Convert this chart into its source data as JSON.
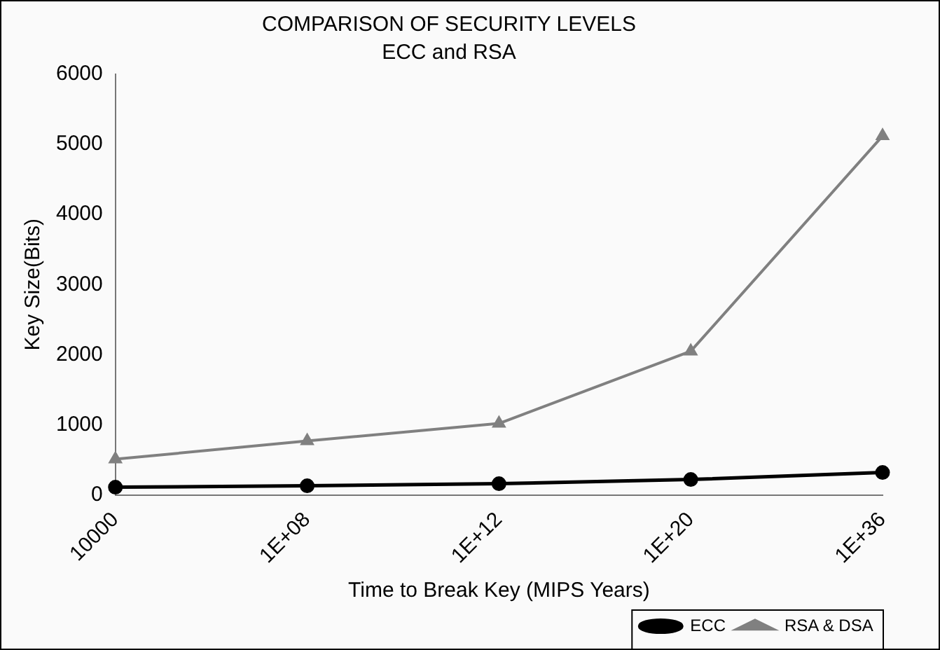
{
  "chart_data": {
    "type": "line",
    "title": "COMPARISON OF SECURITY LEVELS",
    "subtitle": "ECC and RSA",
    "xlabel": "Time to Break Key (MIPS Years)",
    "ylabel": "Key Size(Bits)",
    "categories": [
      "10000",
      "1E+08",
      "1E+12",
      "1E+20",
      "1E+36"
    ],
    "series": [
      {
        "name": "ECC",
        "color": "#000000",
        "marker": "circle",
        "values": [
          110,
          130,
          160,
          220,
          320
        ]
      },
      {
        "name": "RSA & DSA",
        "color": "#808080",
        "marker": "triangle",
        "values": [
          510,
          770,
          1020,
          2050,
          5120
        ]
      }
    ],
    "ylim": [
      0,
      6000
    ],
    "yticks": [
      0,
      1000,
      2000,
      3000,
      4000,
      5000,
      6000
    ],
    "grid": false,
    "legend": "bottom right",
    "line_style": "solid"
  }
}
